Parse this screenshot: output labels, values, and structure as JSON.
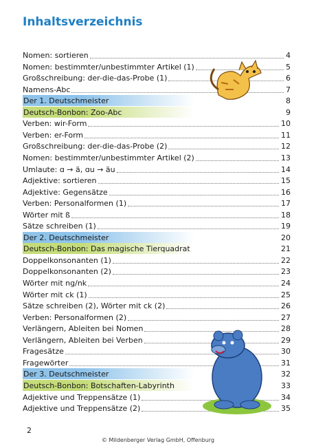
{
  "header": {
    "title": "Inhaltsverzeichnis"
  },
  "entries": [
    {
      "text": "Nomen: sortieren",
      "page": "4"
    },
    {
      "text": "Nomen: bestimmter/unbestimmter Artikel (1)",
      "page": "5"
    },
    {
      "text": "Großschreibung: der-die-das-Probe (1)",
      "page": "6"
    },
    {
      "text": "Namens-Abc",
      "page": "7"
    },
    {
      "text": "Der 1. Deutschmeister",
      "page": "8",
      "band_color": "#8ec3ea"
    },
    {
      "text": "Deutsch-Bonbon: Zoo-Abc",
      "page": "9",
      "band_color": "#c5dc7a"
    },
    {
      "text": "Verben: wir-Form",
      "page": "10"
    },
    {
      "text": "Verben: er-Form",
      "page": "11"
    },
    {
      "text": "Großschreibung: der-die-das-Probe (2)",
      "page": "12"
    },
    {
      "text": "Nomen: bestimmter/unbestimmter Artikel (2)",
      "page": "13"
    },
    {
      "text": "Umlaute: ɑ → ä, ɑu → äu",
      "page": "14"
    },
    {
      "text": "Adjektive: sortieren",
      "page": "15"
    },
    {
      "text": "Adjektive: Gegensätze",
      "page": "16"
    },
    {
      "text": "Verben: Personalformen (1)",
      "page": "17"
    },
    {
      "text": "Wörter mit ß",
      "page": "18"
    },
    {
      "text": "Sätze schreiben (1)",
      "page": "19"
    },
    {
      "text": "Der 2. Deutschmeister",
      "page": "20",
      "band_color": "#8ec3ea"
    },
    {
      "text": "Deutsch-Bonbon: Das magische Tierquadrat",
      "page": "21",
      "band_color": "#c5dc7a"
    },
    {
      "text": "Doppelkonsonanten (1)",
      "page": "22"
    },
    {
      "text": "Doppelkonsonanten (2)",
      "page": "23"
    },
    {
      "text": "Wörter mit ng/nk",
      "page": "24"
    },
    {
      "text": "Wörter mit ck (1)",
      "page": "25"
    },
    {
      "text": "Sätze schreiben (2), Wörter mit ck (2)",
      "page": "26"
    },
    {
      "text": "Verben: Personalformen (2)",
      "page": "27"
    },
    {
      "text": "Verlängern, Ableiten bei Nomen",
      "page": "28"
    },
    {
      "text": "Verlängern, Ableiten bei Verben",
      "page": "29"
    },
    {
      "text": "Fragesätze",
      "page": "30"
    },
    {
      "text": "Fragewörter",
      "page": "31"
    },
    {
      "text": "Der 3. Deutschmeister",
      "page": "32",
      "band_color": "#8ec3ea"
    },
    {
      "text": "Deutsch-Bonbon: Botschaften-Labyrinth",
      "page": "33",
      "band_color": "#c5dc7a"
    },
    {
      "text": "Adjektive und Treppensätze (1)",
      "page": "34"
    },
    {
      "text": "Adjektive und Treppensätze (2)",
      "page": "35"
    }
  ],
  "footer": {
    "page_number": "2",
    "copyright": "© Mildenberger Verlag GmbH, Offenburg"
  }
}
